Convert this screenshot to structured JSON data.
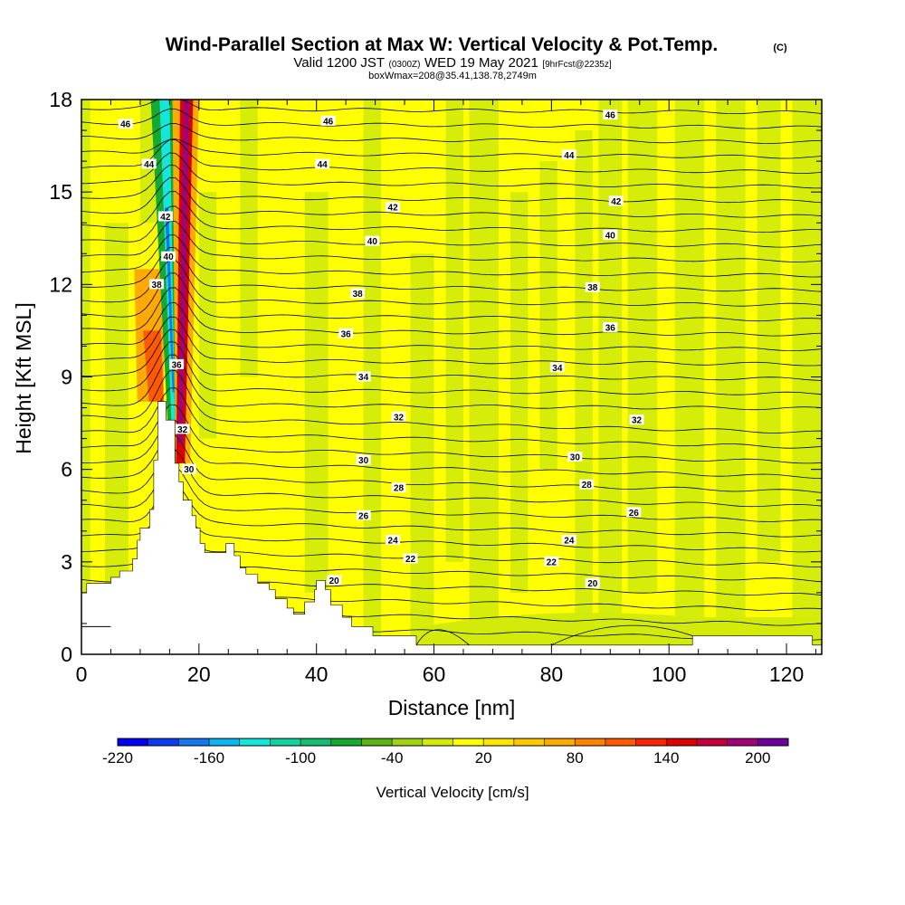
{
  "chart_data": {
    "type": "heatmap",
    "title": "Wind-Parallel Section at Max W: Vertical Velocity & Pot.Temp.",
    "title_mark": "(C)",
    "subtitle": {
      "part1": "Valid 1200 JST",
      "part2": "(0300Z)",
      "part3": "WED 19 May 2021",
      "part4": "[9hrFcst@2235z]"
    },
    "info": "boxWmax=208@35.41,138.78,2749m",
    "xlabel": "Distance [nm]",
    "ylabel": "Height [Kft MSL]",
    "xlim": [
      0,
      126
    ],
    "ylim": [
      0,
      18
    ],
    "x_ticks": [
      0,
      20,
      40,
      60,
      80,
      100,
      120
    ],
    "y_ticks": [
      0,
      3,
      6,
      9,
      12,
      15,
      18
    ],
    "grid": false,
    "colorbar": {
      "title": "Vertical Velocity [cm/s]",
      "tick_labels": [
        "-220",
        "-160",
        "-100",
        "-40",
        "20",
        "80",
        "140",
        "200"
      ],
      "tick_values": [
        -220,
        -160,
        -100,
        -40,
        20,
        80,
        140,
        200
      ],
      "range": [
        -220,
        220
      ],
      "colors": [
        "#0000f5",
        "#0a3cf0",
        "#1478f0",
        "#0fb4f0",
        "#14e6dc",
        "#14d2a0",
        "#14be6e",
        "#14aa32",
        "#5ab414",
        "#a0d214",
        "#d2eb0a",
        "#ffff00",
        "#ffe600",
        "#ffc800",
        "#ffaa00",
        "#ff8200",
        "#ff5a00",
        "#f52800",
        "#dc0000",
        "#c3003c",
        "#a00078",
        "#6e009b"
      ]
    },
    "background_field": {
      "name": "Vertical Velocity",
      "unit": "cm/s",
      "dominant_value": 10,
      "updraft_band": {
        "x_start": 16,
        "peak": 208
      },
      "downdraft_band": {
        "x_start": 14,
        "min": -180
      }
    },
    "contours": {
      "name": "Pot.Temp.",
      "levels": [
        20,
        22,
        24,
        26,
        28,
        30,
        32,
        34,
        36,
        38,
        40,
        42,
        44,
        46
      ],
      "labels": [
        {
          "text": "46",
          "x": 7.5,
          "y": 17.2
        },
        {
          "text": "46",
          "x": 42,
          "y": 17.3
        },
        {
          "text": "46",
          "x": 90,
          "y": 17.5
        },
        {
          "text": "44",
          "x": 11.5,
          "y": 15.9
        },
        {
          "text": "44",
          "x": 41,
          "y": 15.9
        },
        {
          "text": "44",
          "x": 83,
          "y": 16.2
        },
        {
          "text": "42",
          "x": 14.3,
          "y": 14.2
        },
        {
          "text": "42",
          "x": 53,
          "y": 14.5
        },
        {
          "text": "42",
          "x": 91,
          "y": 14.7
        },
        {
          "text": "40",
          "x": 14.8,
          "y": 12.9
        },
        {
          "text": "40",
          "x": 49.5,
          "y": 13.4
        },
        {
          "text": "40",
          "x": 90,
          "y": 13.6
        },
        {
          "text": "38",
          "x": 12.8,
          "y": 12.0
        },
        {
          "text": "38",
          "x": 47,
          "y": 11.7
        },
        {
          "text": "38",
          "x": 87,
          "y": 11.9
        },
        {
          "text": "36",
          "x": 16.2,
          "y": 9.4
        },
        {
          "text": "36",
          "x": 45,
          "y": 10.4
        },
        {
          "text": "36",
          "x": 90,
          "y": 10.6
        },
        {
          "text": "34",
          "x": 48,
          "y": 9.0
        },
        {
          "text": "34",
          "x": 81,
          "y": 9.3
        },
        {
          "text": "32",
          "x": 17.2,
          "y": 7.3
        },
        {
          "text": "32",
          "x": 54,
          "y": 7.7
        },
        {
          "text": "32",
          "x": 94.5,
          "y": 7.6
        },
        {
          "text": "30",
          "x": 18.3,
          "y": 6.0
        },
        {
          "text": "30",
          "x": 48,
          "y": 6.3
        },
        {
          "text": "30",
          "x": 84,
          "y": 6.4
        },
        {
          "text": "28",
          "x": 54,
          "y": 5.4
        },
        {
          "text": "28",
          "x": 86,
          "y": 5.5
        },
        {
          "text": "26",
          "x": 48,
          "y": 4.5
        },
        {
          "text": "26",
          "x": 94,
          "y": 4.6
        },
        {
          "text": "24",
          "x": 53,
          "y": 3.7
        },
        {
          "text": "24",
          "x": 83,
          "y": 3.7
        },
        {
          "text": "22",
          "x": 56,
          "y": 3.1
        },
        {
          "text": "22",
          "x": 80,
          "y": 3.0
        },
        {
          "text": "20",
          "x": 43,
          "y": 2.4
        },
        {
          "text": "20",
          "x": 87,
          "y": 2.3
        }
      ]
    },
    "terrain": [
      [
        0,
        2
      ],
      [
        0.9,
        2
      ],
      [
        0.9,
        2.3
      ],
      [
        5,
        2.3
      ],
      [
        5,
        2.5
      ],
      [
        6.5,
        2.5
      ],
      [
        6.5,
        2.7
      ],
      [
        8.7,
        2.7
      ],
      [
        8.7,
        3.1
      ],
      [
        9.5,
        3.1
      ],
      [
        9.5,
        3.7
      ],
      [
        10,
        3.7
      ],
      [
        10,
        4.1
      ],
      [
        11.6,
        4.1
      ],
      [
        11.6,
        4.7
      ],
      [
        12.3,
        4.7
      ],
      [
        12.3,
        6.3
      ],
      [
        13,
        6.3
      ],
      [
        13,
        8.2
      ],
      [
        14.4,
        8.2
      ],
      [
        14.4,
        7.6
      ],
      [
        15.9,
        7.6
      ],
      [
        15.9,
        6.2
      ],
      [
        16.6,
        6.2
      ],
      [
        16.6,
        5.6
      ],
      [
        17.3,
        5.6
      ],
      [
        17.3,
        5.0
      ],
      [
        18.8,
        5.0
      ],
      [
        18.8,
        4.5
      ],
      [
        19.5,
        4.5
      ],
      [
        19.5,
        4.1
      ],
      [
        20.2,
        4.1
      ],
      [
        20.2,
        3.6
      ],
      [
        21,
        3.6
      ],
      [
        21,
        3.3
      ],
      [
        24.6,
        3.3
      ],
      [
        24.6,
        3.6
      ],
      [
        26,
        3.6
      ],
      [
        26,
        3.2
      ],
      [
        27,
        3.2
      ],
      [
        27,
        2.8
      ],
      [
        28,
        2.8
      ],
      [
        28,
        2.6
      ],
      [
        30,
        2.6
      ],
      [
        30,
        2.3
      ],
      [
        32,
        2.3
      ],
      [
        32,
        2.1
      ],
      [
        33,
        2.1
      ],
      [
        33,
        1.8
      ],
      [
        35,
        1.8
      ],
      [
        35,
        1.5
      ],
      [
        36.1,
        1.5
      ],
      [
        36.1,
        1.3
      ],
      [
        38,
        1.3
      ],
      [
        38,
        1.7
      ],
      [
        39.7,
        1.7
      ],
      [
        39.7,
        2.1
      ],
      [
        40,
        2.1
      ],
      [
        40,
        2.4
      ],
      [
        41.5,
        2.4
      ],
      [
        41.5,
        2.1
      ],
      [
        42.4,
        2.1
      ],
      [
        42.4,
        1.6
      ],
      [
        44.4,
        1.6
      ],
      [
        44.4,
        1.2
      ],
      [
        46,
        1.2
      ],
      [
        46,
        0.9
      ],
      [
        49.6,
        0.9
      ],
      [
        49.6,
        0.6
      ],
      [
        57,
        0.6
      ],
      [
        57,
        0.3
      ],
      [
        58,
        0.3
      ],
      [
        58,
        0.3
      ],
      [
        104,
        0.3
      ],
      [
        104,
        0.6
      ],
      [
        124.4,
        0.6
      ],
      [
        124.4,
        0.3
      ],
      [
        126,
        0.3
      ],
      [
        126,
        0
      ],
      [
        0,
        0
      ]
    ],
    "terrain_ledge": {
      "x": [
        0,
        5
      ],
      "y": 0.9
    }
  }
}
